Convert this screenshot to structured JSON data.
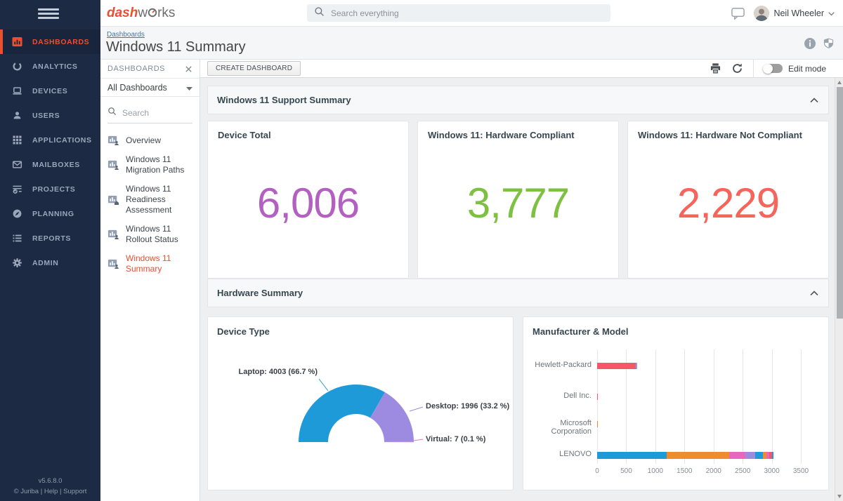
{
  "sidebar": {
    "items": [
      {
        "label": "DASHBOARDS",
        "icon": "bar-chart",
        "active": true
      },
      {
        "label": "ANALYTICS",
        "icon": "circle"
      },
      {
        "label": "DEVICES",
        "icon": "laptop"
      },
      {
        "label": "USERS",
        "icon": "person"
      },
      {
        "label": "APPLICATIONS",
        "icon": "grid"
      },
      {
        "label": "MAILBOXES",
        "icon": "envelope"
      },
      {
        "label": "PROJECTS",
        "icon": "tasks"
      },
      {
        "label": "PLANNING",
        "icon": "compass"
      },
      {
        "label": "REPORTS",
        "icon": "list"
      },
      {
        "label": "ADMIN",
        "icon": "gear"
      }
    ],
    "version": "v5.6.8.0",
    "footer_copyright": "© Juriba",
    "footer_links": [
      "Help",
      "Support"
    ]
  },
  "topbar": {
    "logo": {
      "part1": "dash",
      "part2": "w",
      "part3": "rks"
    },
    "search_placeholder": "Search everything",
    "user_name": "Neil Wheeler"
  },
  "page_header": {
    "breadcrumb": "Dashboards",
    "title": "Windows 11 Summary"
  },
  "dashboards_panel": {
    "title": "DASHBOARDS",
    "filter_value": "All Dashboards",
    "search_placeholder": "Search",
    "items": [
      {
        "label": "Overview",
        "badge": "person"
      },
      {
        "label": "Windows 11 Migration Paths",
        "badge": "person"
      },
      {
        "label": "Windows 11 Readiness Assessment",
        "badge": "home"
      },
      {
        "label": "Windows 11 Rollout Status",
        "badge": "person"
      },
      {
        "label": "Windows 11 Summary",
        "badge": "person",
        "active": true
      }
    ]
  },
  "toolbar": {
    "create_button": "CREATE DASHBOARD",
    "edit_mode_label": "Edit mode"
  },
  "sections": [
    {
      "title": "Windows 11 Support Summary"
    },
    {
      "title": "Hardware Summary"
    }
  ],
  "kpis": [
    {
      "title": "Device Total",
      "value": "6,006",
      "color": "#b261c0"
    },
    {
      "title": "Windows 11: Hardware Compliant",
      "value": "3,777",
      "color": "#7ec142"
    },
    {
      "title": "Windows 11: Hardware Not Compliant",
      "value": "2,229",
      "color": "#f4665c"
    }
  ],
  "chart_data": [
    {
      "type": "pie",
      "variant": "semi-donut",
      "title": "Device Type",
      "categories": [
        "Laptop",
        "Desktop",
        "Virtual"
      ],
      "values": [
        4003,
        1996,
        7
      ],
      "percents": [
        66.7,
        33.2,
        0.1
      ],
      "labels": [
        "Laptop: 4003 (66.7 %)",
        "Desktop: 1996 (33.2 %)",
        "Virtual: 7 (0.1 %)"
      ],
      "colors": [
        "#1f9ad8",
        "#9c8be1",
        "#e178c5"
      ],
      "legend_position": "callout-labels",
      "grid": false
    },
    {
      "type": "bar",
      "orientation": "horizontal",
      "stacked": true,
      "title": "Manufacturer & Model",
      "categories": [
        "Hewlett-Packard",
        "Dell Inc.",
        "Microsoft Corporation",
        "LENOVO"
      ],
      "xlim": [
        0,
        3500
      ],
      "xticks": [
        0,
        500,
        1000,
        1500,
        2000,
        2500,
        3000,
        3500
      ],
      "grid": true,
      "bars": [
        {
          "category": "Hewlett-Packard",
          "total": 690,
          "segments": [
            {
              "value": 660,
              "color": "#f4566a"
            },
            {
              "value": 30,
              "color": "#8c9fe8"
            }
          ]
        },
        {
          "category": "Dell Inc.",
          "total": 15,
          "segments": [
            {
              "value": 15,
              "color": "#f4566a"
            }
          ]
        },
        {
          "category": "Microsoft Corporation",
          "total": 15,
          "segments": [
            {
              "value": 15,
              "color": "#ef8c30"
            }
          ]
        },
        {
          "category": "LENOVO",
          "total": 3035,
          "segments": [
            {
              "value": 1190,
              "color": "#1f9ad8"
            },
            {
              "value": 1075,
              "color": "#ef8c30"
            },
            {
              "value": 280,
              "color": "#e966bd"
            },
            {
              "value": 175,
              "color": "#9c8be1"
            },
            {
              "value": 125,
              "color": "#1f9ad8"
            },
            {
              "value": 60,
              "color": "#ef8c30"
            },
            {
              "value": 55,
              "color": "#e966bd"
            },
            {
              "value": 50,
              "color": "#f4566a"
            },
            {
              "value": 25,
              "color": "#1f9ad8"
            }
          ]
        }
      ]
    }
  ]
}
